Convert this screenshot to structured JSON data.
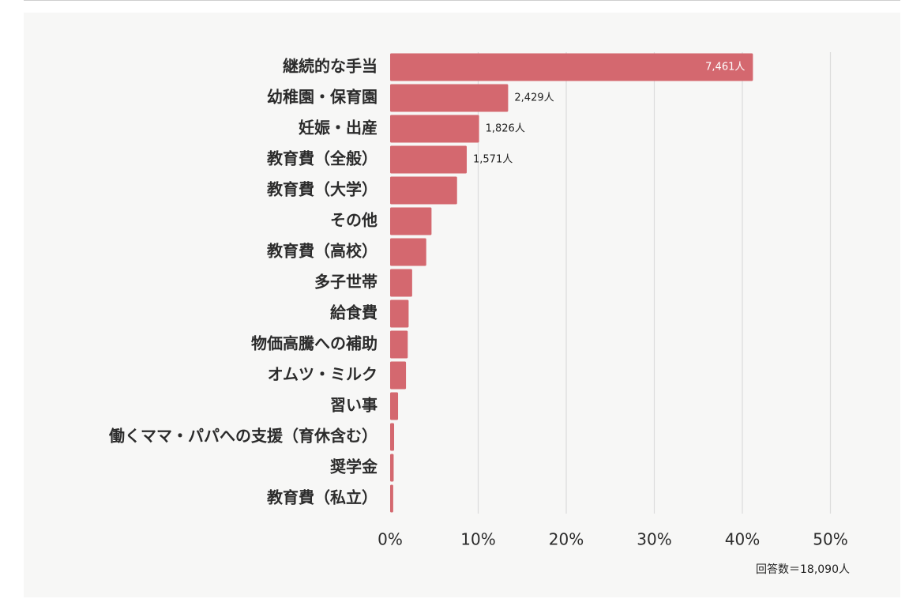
{
  "colors": {
    "bar": "#d4686f",
    "grid": "#dcdcdc",
    "panel": "#f7f7f6",
    "text": "#2b2b2b"
  },
  "chart_data": {
    "type": "bar",
    "orientation": "horizontal",
    "categories": [
      "継続的な手当",
      "幼稚園・保育園",
      "妊娠・出産",
      "教育費（全般）",
      "教育費（大学）",
      "その他",
      "教育費（高校）",
      "多子世帯",
      "給食費",
      "物価高騰への補助",
      "オムツ・ミルク",
      "習い事",
      "働くママ・パパへの支援（育休含む）",
      "奨学金",
      "教育費（私立）"
    ],
    "values": [
      41.2,
      13.4,
      10.1,
      8.7,
      7.6,
      4.7,
      4.1,
      2.5,
      2.1,
      2.0,
      1.8,
      0.9,
      0.45,
      0.4,
      0.35
    ],
    "value_unit": "%",
    "data_labels": [
      "7,461人",
      "2,429人",
      "1,826人",
      "1,571人",
      "",
      "",
      "",
      "",
      "",
      "",
      "",
      "",
      "",
      "",
      ""
    ],
    "x_ticks": [
      "0%",
      "10%",
      "20%",
      "30%",
      "40%",
      "50%"
    ],
    "xlim": [
      0,
      50
    ],
    "grid": true,
    "note": "回答数＝18,090人"
  }
}
